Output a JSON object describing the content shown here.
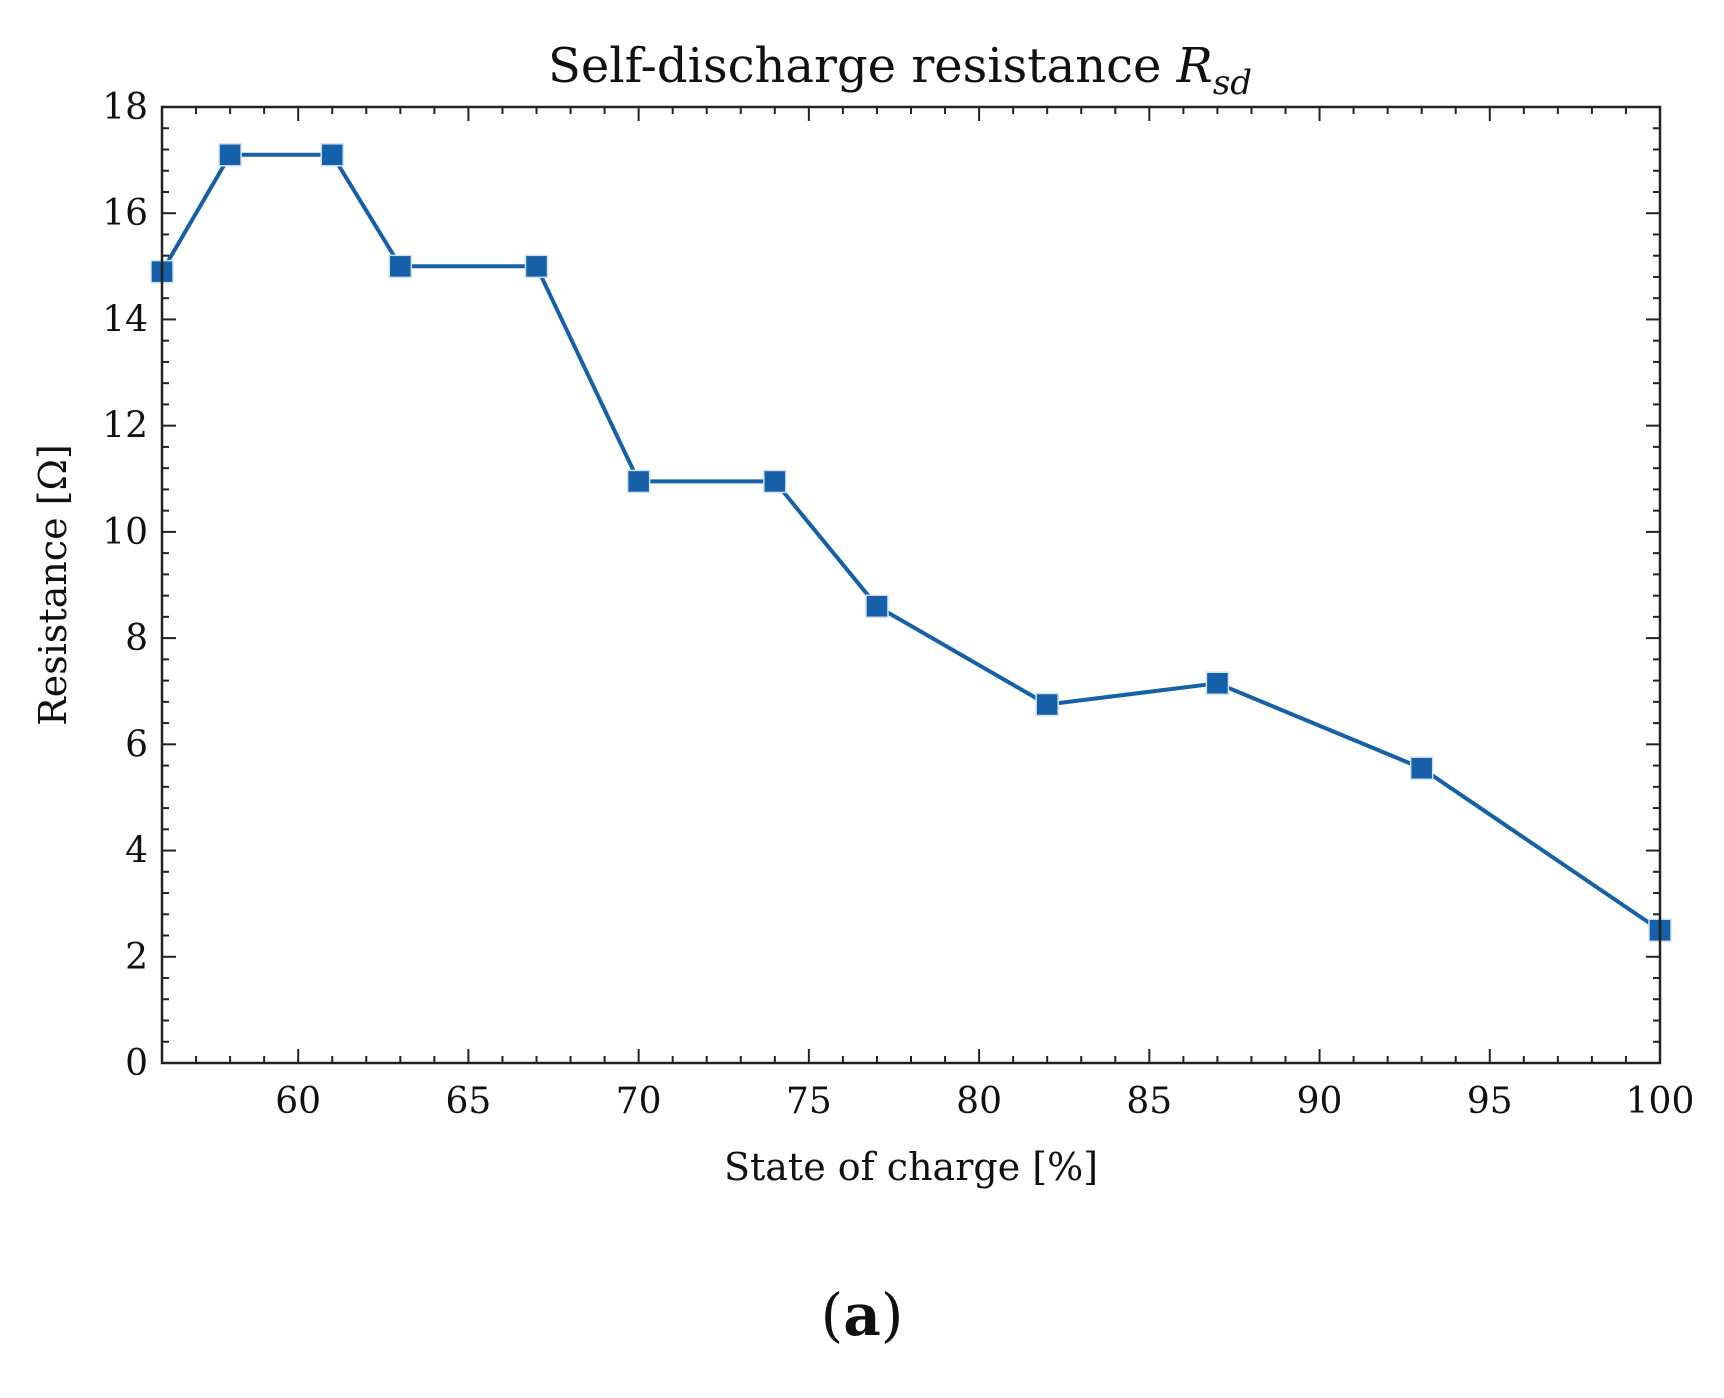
{
  "chart_data": {
    "type": "line",
    "title": "Self-discharge resistance ",
    "title_symbol": "R",
    "title_subscript": "sd",
    "xlabel": "State of charge [%]",
    "ylabel": "Resistance [Ω]",
    "xlim": [
      56,
      100
    ],
    "ylim": [
      0,
      18
    ],
    "x_ticks": [
      60,
      65,
      70,
      75,
      80,
      85,
      90,
      95,
      100
    ],
    "y_ticks": [
      0,
      2,
      4,
      6,
      8,
      10,
      12,
      14,
      16,
      18
    ],
    "series": [
      {
        "name": "Rsd",
        "color": "#1560a8",
        "marker": "square",
        "x": [
          56,
          58,
          61,
          63,
          67,
          70,
          74,
          77,
          82,
          87,
          93,
          100
        ],
        "y": [
          14.9,
          17.1,
          17.1,
          15.0,
          15.0,
          10.95,
          10.95,
          8.6,
          6.75,
          7.15,
          5.55,
          2.5
        ]
      }
    ],
    "grid": false,
    "legend": "none",
    "panel_label_open": "(",
    "panel_label": "a",
    "panel_label_close": ")"
  }
}
